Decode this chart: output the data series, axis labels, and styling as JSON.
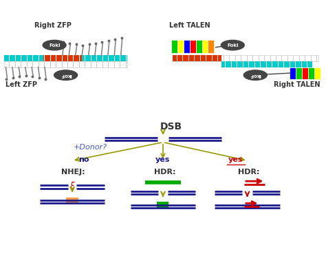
{
  "title": "",
  "bg_color": "#ffffff",
  "top_section": {
    "left_label": "Left ZFP",
    "right_label_zfp": "Right ZFP",
    "left_talen_label": "Left TALEN",
    "right_talen_label": "Right TALEN"
  },
  "bottom_section": {
    "dsb_label": "DSB",
    "donor_label": "+Donor?",
    "no_label": "no",
    "yes1_label": "yes",
    "yes2_label": "yes",
    "nhej_label": "NHEJ:",
    "hdr1_label": "HDR:",
    "hdr2_label": "HDR:"
  },
  "colors": {
    "dark_blue": "#00008B",
    "navy": "#1a1a8c",
    "olive_arrow": "#999900",
    "red": "#cc0000",
    "green": "#00aa00",
    "orange": "#ff9944",
    "cyan": "#00cccc",
    "gray_dark": "#444444",
    "gray_mid": "#888888",
    "gray_light": "#cccccc",
    "white": "#ffffff",
    "talen_blue": "#0000ff",
    "talen_green": "#00cc00",
    "talen_yellow": "#ffff00",
    "talen_red": "#ff0000",
    "talen_orange": "#ff8800",
    "dna_orange": "#dd3300",
    "donor_blue": "#4455cc"
  }
}
